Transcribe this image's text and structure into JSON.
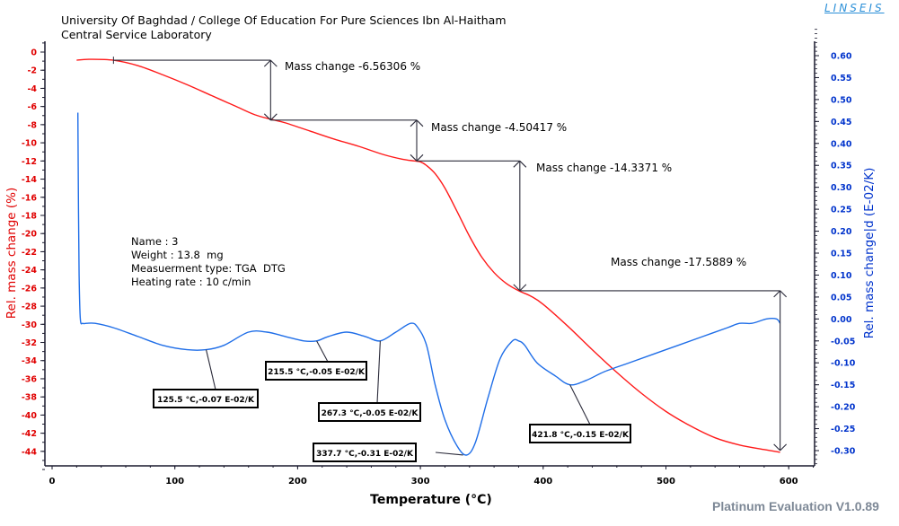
{
  "header": {
    "line1": "University Of Baghdad / College Of Education For Pure Sciences Ibn Al-Haitham",
    "line2": "Central Service Laboratory",
    "logo": "LINSEIS"
  },
  "footer": "Platinum Evaluation V1.0.89",
  "sample_info": {
    "name": "Name : 3",
    "weight": "Weight : 13.8  mg",
    "type": "Measuerment type: TGA  DTG",
    "rate": "Heating rate : 10 c/min"
  },
  "colors": {
    "tga": "#ff1a1a",
    "dtg": "#1f6ee8",
    "annotation": "#2b2b3a",
    "left_axis": "#e00000",
    "right_axis": "#0033cc"
  },
  "chart_data": {
    "type": "line",
    "xlabel": "Temperature (°C)",
    "ylabel_left": "Rel. mass change (%)",
    "ylabel_right": "Rel. mass change|d (E-02/K)",
    "xlim": [
      -5,
      622
    ],
    "ylim_left": [
      -46.4,
      1.4
    ],
    "ylim_right": [
      -0.34,
      0.67
    ],
    "x_ticks": [
      0,
      100,
      200,
      300,
      400,
      500,
      600
    ],
    "y_left_ticks": [
      0,
      -2,
      -4,
      -6,
      -8,
      -10,
      -12,
      -14,
      -16,
      -18,
      -20,
      -22,
      -24,
      -26,
      -28,
      -30,
      -32,
      -34,
      -36,
      -38,
      -40,
      -42,
      -44
    ],
    "y_right_ticks": [
      0.6,
      0.55,
      0.5,
      0.45,
      0.4,
      0.35,
      0.3,
      0.25,
      0.2,
      0.15,
      0.1,
      0.05,
      0.0,
      -0.05,
      -0.1,
      -0.15,
      -0.2,
      -0.25,
      -0.3
    ],
    "grid": false,
    "series": [
      {
        "name": "TGA",
        "axis": "left",
        "x": [
          20,
          30,
          50,
          70,
          90,
          110,
          130,
          150,
          165,
          178,
          190,
          210,
          230,
          250,
          270,
          285,
          295,
          300,
          305,
          312,
          320,
          330,
          340,
          350,
          360,
          370,
          380,
          390,
          400,
          420,
          440,
          460,
          480,
          500,
          520,
          540,
          560,
          580,
          593
        ],
        "y": [
          -0.9,
          -0.8,
          -0.9,
          -1.5,
          -2.5,
          -3.6,
          -4.8,
          -6.0,
          -6.9,
          -7.4,
          -7.8,
          -8.7,
          -9.6,
          -10.4,
          -11.3,
          -11.8,
          -12.0,
          -12.1,
          -12.5,
          -13.4,
          -15.0,
          -17.6,
          -20.3,
          -22.6,
          -24.3,
          -25.5,
          -26.3,
          -26.9,
          -27.8,
          -30.2,
          -32.8,
          -35.3,
          -37.6,
          -39.6,
          -41.2,
          -42.5,
          -43.3,
          -43.8,
          -44.1
        ]
      },
      {
        "name": "DTG",
        "axis": "right",
        "x": [
          21,
          21.5,
          22,
          23,
          25,
          28,
          35,
          50,
          70,
          90,
          110,
          125.5,
          140,
          160,
          175,
          190,
          205,
          215.5,
          225,
          240,
          255,
          267.3,
          280,
          292,
          298,
          305,
          312,
          320,
          330,
          337.7,
          345,
          355,
          365,
          375,
          380,
          385,
          395,
          410,
          421.8,
          435,
          450,
          470,
          490,
          510,
          530,
          550,
          560,
          570,
          582,
          590,
          593
        ],
        "y": [
          0.47,
          0.25,
          0.1,
          0.0,
          -0.01,
          -0.01,
          -0.01,
          -0.02,
          -0.04,
          -0.06,
          -0.07,
          -0.07,
          -0.06,
          -0.03,
          -0.03,
          -0.04,
          -0.05,
          -0.05,
          -0.04,
          -0.03,
          -0.04,
          -0.05,
          -0.03,
          -0.01,
          -0.02,
          -0.06,
          -0.15,
          -0.23,
          -0.29,
          -0.31,
          -0.28,
          -0.18,
          -0.09,
          -0.05,
          -0.05,
          -0.06,
          -0.1,
          -0.13,
          -0.15,
          -0.14,
          -0.12,
          -0.1,
          -0.08,
          -0.06,
          -0.04,
          -0.02,
          -0.01,
          -0.01,
          0.0,
          0.0,
          -0.01
        ]
      }
    ],
    "mass_changes": [
      {
        "label": "Mass change  -6.56306 %",
        "x_from": 50,
        "x_to": 178,
        "y_start": -0.9,
        "y_end": -7.5
      },
      {
        "label": "Mass change  -4.50417 %",
        "x_from": 178,
        "x_to": 297,
        "y_start": -7.5,
        "y_end": -12.0
      },
      {
        "label": "Mass change  -14.3371 %",
        "x_from": 297,
        "x_to": 381,
        "y_start": -12.0,
        "y_end": -26.3
      },
      {
        "label": "Mass change  -17.5889 %",
        "x_from": 381,
        "x_to": 593,
        "y_start": -26.3,
        "y_end": -43.9
      }
    ],
    "peak_labels": [
      {
        "label": "125.5 °C,-0.07 E-02/K",
        "x": 125.5,
        "y": -0.07
      },
      {
        "label": "215.5 °C,-0.05 E-02/K",
        "x": 215.5,
        "y": -0.05
      },
      {
        "label": "267.3 °C,-0.05 E-02/K",
        "x": 267.3,
        "y": -0.05
      },
      {
        "label": "337.7 °C,-0.31 E-02/K",
        "x": 337.7,
        "y": -0.31
      },
      {
        "label": "421.8 °C,-0.15 E-02/K",
        "x": 421.8,
        "y": -0.15
      }
    ]
  }
}
